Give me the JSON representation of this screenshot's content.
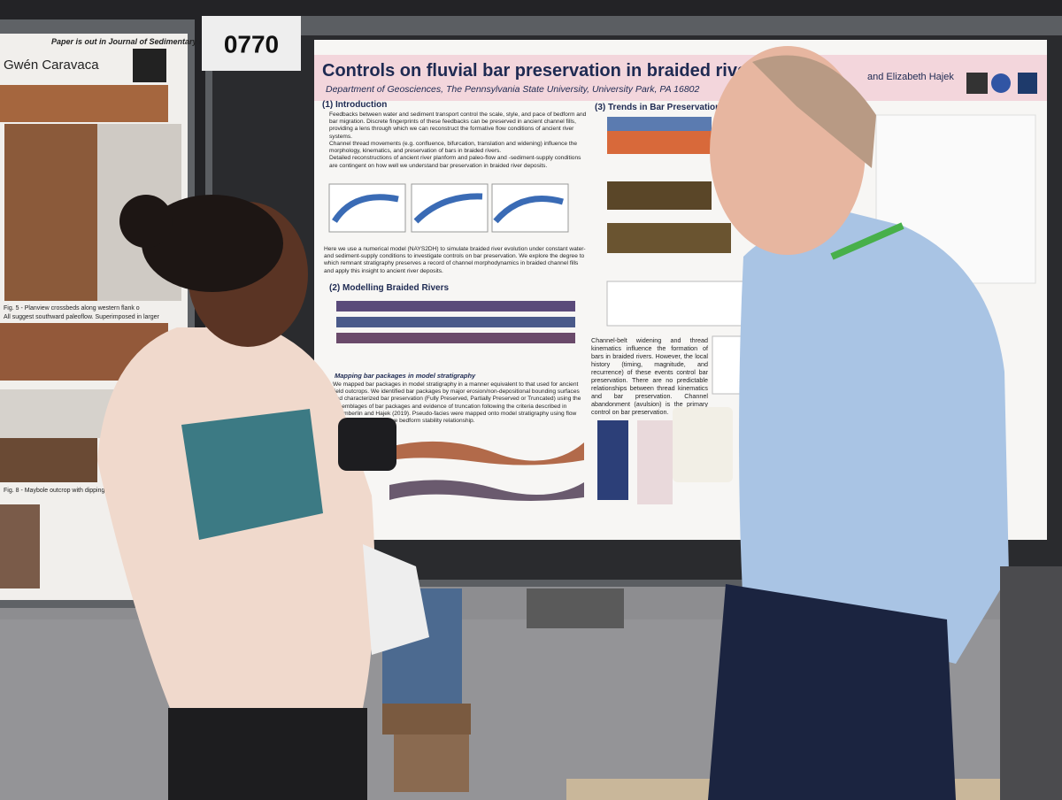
{
  "booth_number": "0770",
  "left_poster": {
    "header": "Paper is out in Journal of Sedimentary Research",
    "author": "Gwén Caravaca",
    "caption_a": "Fig. 5 - Planview crossbeds along western flank o",
    "caption_b": "All suggest southward paleoflow. Superimposed in larger",
    "caption_c": "Fig. 8 - Maybole outcrop with dipping p"
  },
  "poster": {
    "title": "Controls on fluvial bar preservation in braided river",
    "affiliation": "Department of Geosciences, The Pennsylvania State University, University Park, PA 16802",
    "authors": "and Elizabeth Hajek",
    "intro_heading": "(1) Introduction",
    "intro_bullets": [
      "Feedbacks between water and sediment transport control the scale, style, and pace of bedform and bar migration. Discrete fingerprints of these feedbacks can be preserved in ancient channel fills, providing a lens through which we can reconstruct the formative flow conditions of ancient river systems.",
      "Channel thread movements (e.g. confluence, bifurcation, translation and widening) influence the morphology, kinematics, and preservation of bars in braided rivers.",
      "Detailed reconstructions of ancient river planform and paleo-flow and -sediment-supply conditions are contingent on how well we understand bar preservation in braided river deposits."
    ],
    "method_text": "Here we use a numerical model (NAYS2DH) to simulate braided river evolution under constant water- and sediment-supply conditions to investigate controls on bar preservation. We explore the degree to which remnant stratigraphy preserves a record of channel morphodynamics in braided channel fills and apply this insight to ancient river deposits.",
    "modelling_heading": "(2) Modelling Braided Rivers",
    "mapping_heading": "Mapping bar packages in model stratigraphy",
    "mapping_text": "We mapped bar packages in model stratigraphy in a manner equivalent to that used for ancient field outcrops. We identified bar packages by major erosion/non-depositional bounding surfaces and characterized bar preservation (Fully Preserved, Partially Preserved or Truncated) using the assemblages of bar packages and evidence of truncation following the criteria described in Chamberlin and Hajek (2019). Pseudo-facies were mapped onto model stratigraphy using flow conditions representative bedform stability relationship.",
    "trends_heading": "(3) Trends in Bar Preservation",
    "conclusion_text": "Channel-belt widening and thread kinematics influence the formation of bars in braided rivers. However, the local history (timing, magnitude, and recurrence) of these events control bar preservation. There are no predictable relationships between thread kinematics and bar preservation. Channel abandonment (avulsion) is the primary control on bar preservation."
  }
}
